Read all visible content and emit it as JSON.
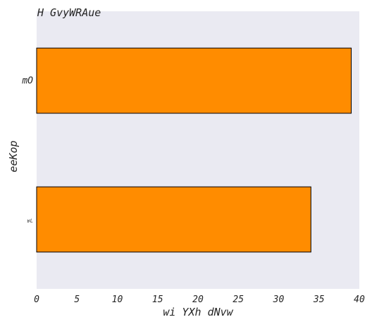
{
  "chart_data": {
    "type": "bar",
    "orientation": "horizontal",
    "title": "H GvyWRAue",
    "xlabel": "wi YXh  dNvw",
    "ylabel": "eeKop",
    "categories": [
      "mO",
      "ʁL"
    ],
    "values": [
      39,
      34
    ],
    "xlim": [
      0,
      40
    ],
    "xticks": [
      0,
      5,
      10,
      15,
      20,
      25,
      30,
      35,
      40
    ],
    "grid": false,
    "legend": "none",
    "colors": {
      "bar": "#ff8c00",
      "bar_edge": "#000000",
      "plot_background": "#eaeaf2",
      "text": "#262626"
    }
  }
}
